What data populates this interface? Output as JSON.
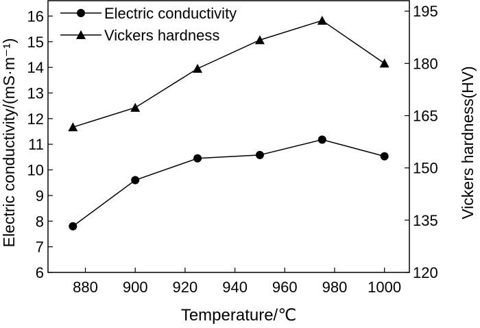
{
  "chart_data": {
    "type": "line",
    "xlabel": "Temperature/℃",
    "ylabel_left": "Electric conductivity/(mS·m⁻¹)",
    "ylabel_right": "Vickers hardness(HV)",
    "x": [
      875,
      900,
      925,
      950,
      975,
      1000
    ],
    "x_ticks": [
      880,
      900,
      920,
      940,
      960,
      980,
      1000
    ],
    "xlim": [
      865,
      1010
    ],
    "ylim_left": [
      6,
      16.6
    ],
    "ylim_right": [
      120,
      198
    ],
    "y_ticks_left": [
      6,
      7,
      8,
      9,
      10,
      11,
      12,
      13,
      14,
      15,
      16
    ],
    "y_ticks_right": [
      120,
      135,
      150,
      165,
      180,
      195
    ],
    "grid": false,
    "legend_position": "top-left",
    "series": [
      {
        "name": "Electric conductivity",
        "axis": "left",
        "marker": "circle",
        "values": [
          7.8,
          9.6,
          10.45,
          10.58,
          11.18,
          10.53
        ]
      },
      {
        "name": "Vickers hardness",
        "axis": "right",
        "marker": "triangle",
        "values": [
          161.7,
          167.3,
          178.5,
          186.7,
          192.3,
          180.0
        ]
      }
    ]
  }
}
